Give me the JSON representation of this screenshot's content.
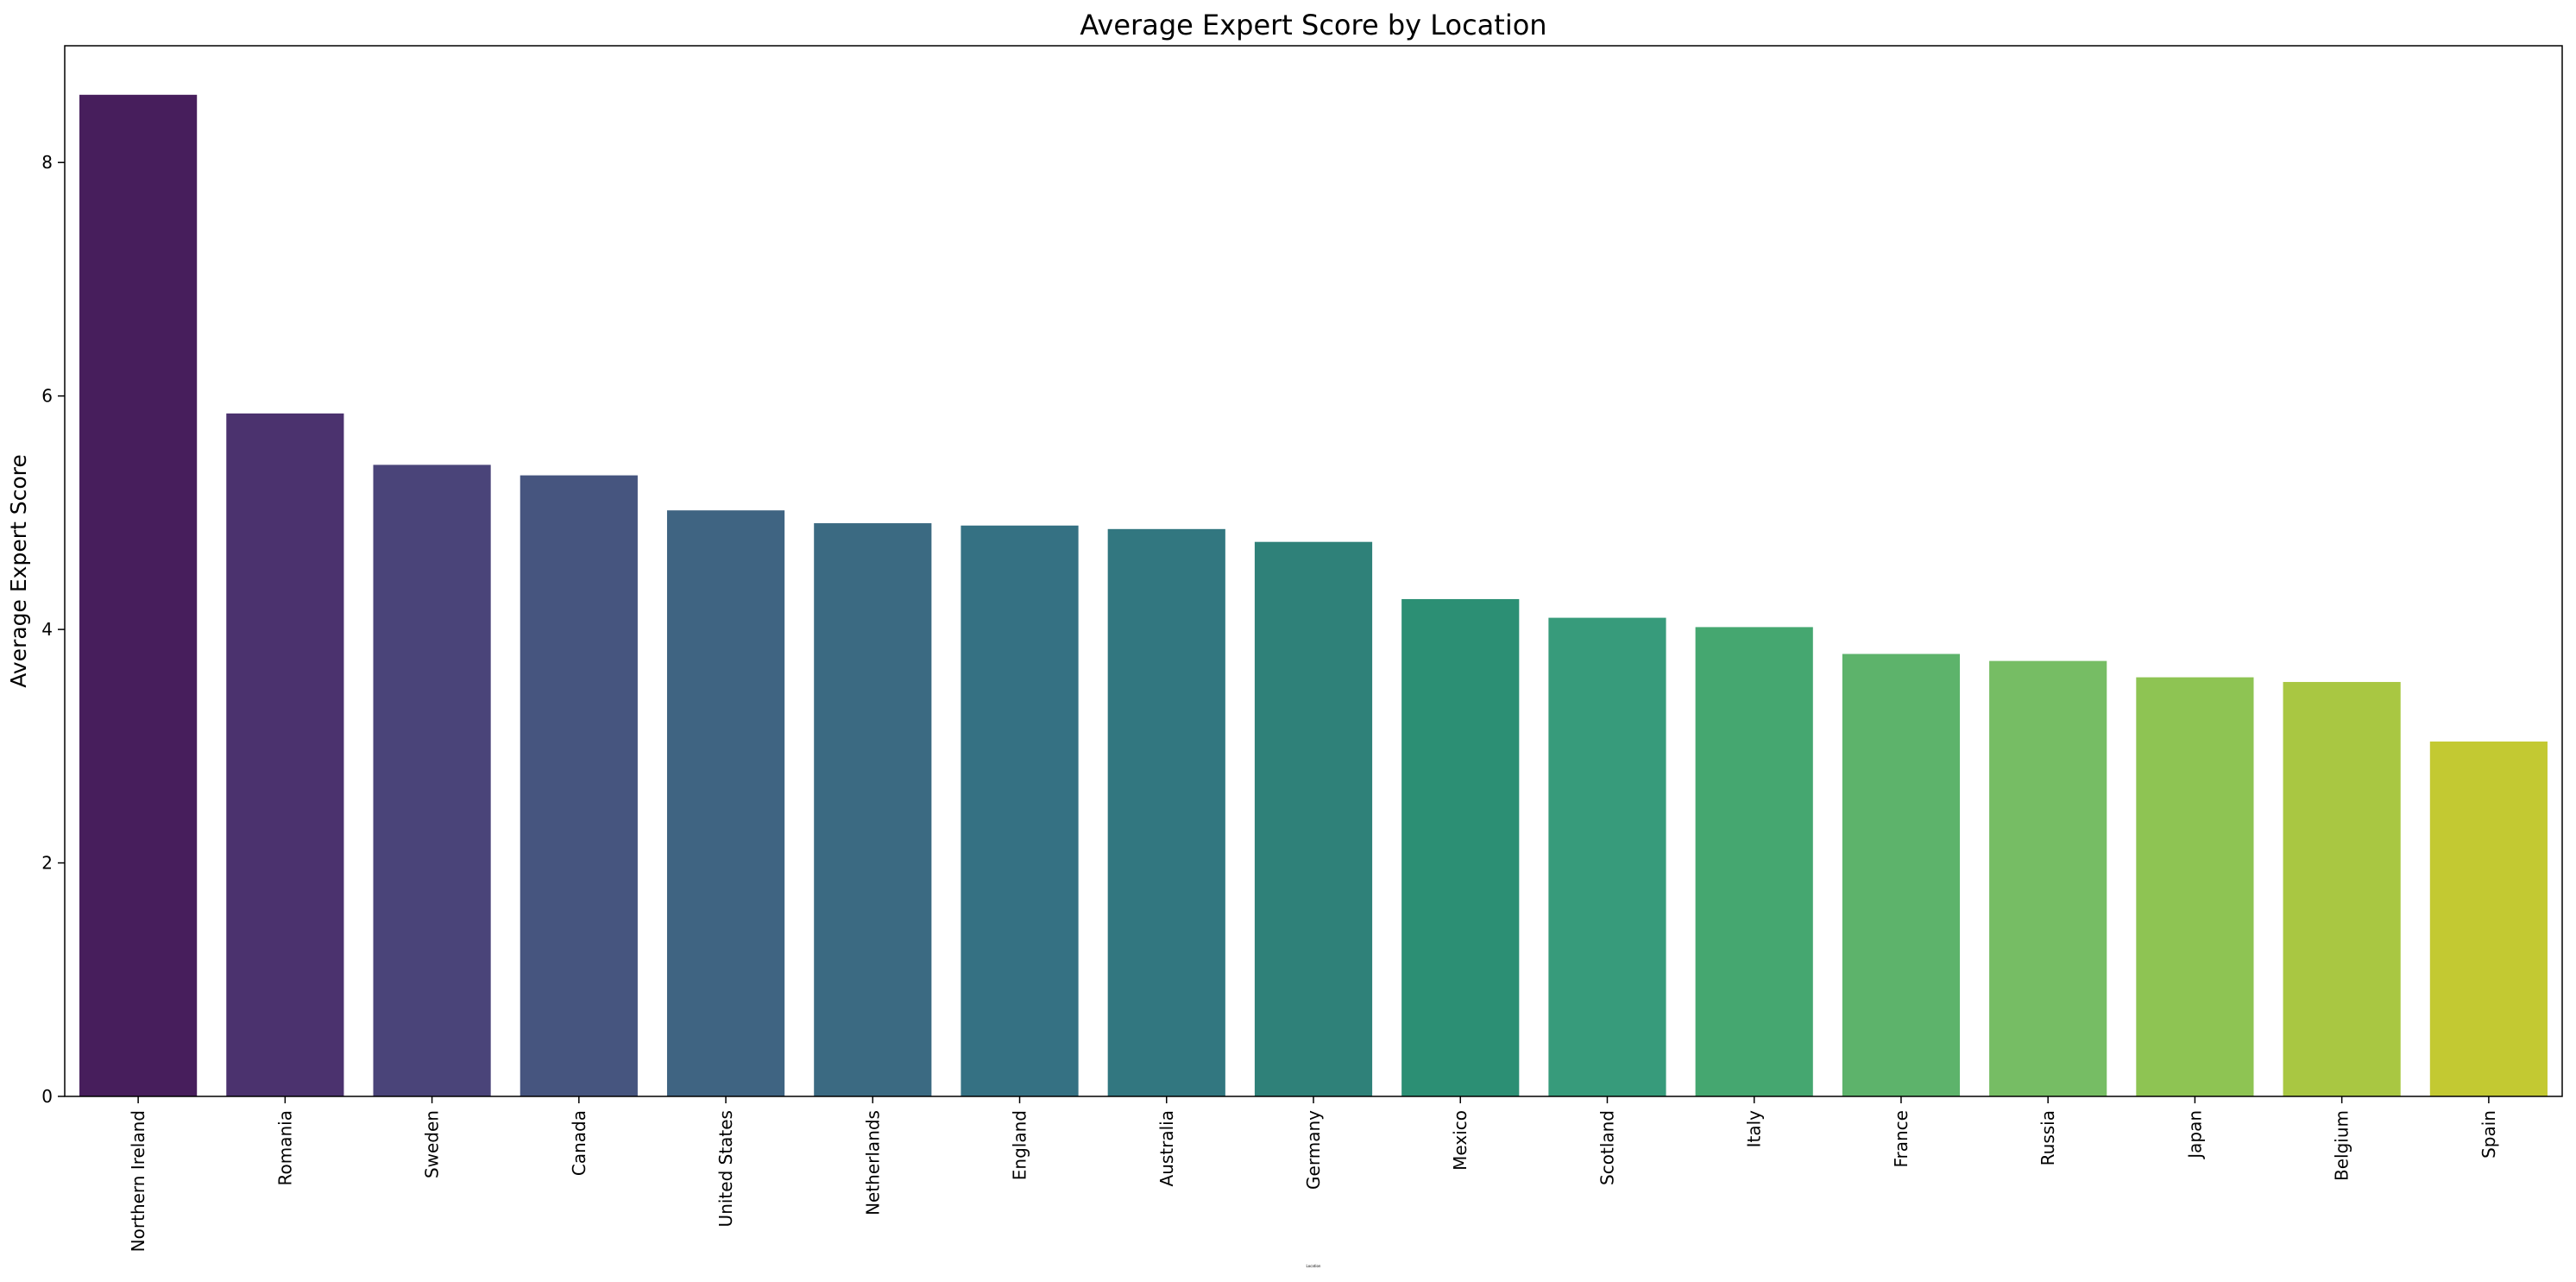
{
  "chart_data": {
    "type": "bar",
    "title": "Average Expert Score by Location",
    "xlabel": "Location",
    "ylabel": "Average Expert Score",
    "ylim": [
      0,
      9
    ],
    "yticks": [
      0,
      2,
      4,
      6,
      8
    ],
    "grid": false,
    "legend": "none",
    "categories": [
      "Northern Ireland",
      "Romania",
      "Sweden",
      "Canada",
      "United States",
      "Netherlands",
      "England",
      "Australia",
      "Germany",
      "Mexico",
      "Scotland",
      "Italy",
      "France",
      "Russia",
      "Japan",
      "Belgium",
      "Spain"
    ],
    "values": [
      8.58,
      5.85,
      5.41,
      5.32,
      5.02,
      4.91,
      4.89,
      4.86,
      4.75,
      4.26,
      4.1,
      4.02,
      3.79,
      3.73,
      3.59,
      3.55,
      3.04
    ],
    "colors": [
      "#471e5c",
      "#4b326e",
      "#4a4479",
      "#46557f",
      "#3f6482",
      "#3b6a82",
      "#357183",
      "#327780",
      "#2f8179",
      "#2c8f74",
      "#379b7b",
      "#45a770",
      "#5db36b",
      "#76bd64",
      "#8ec453",
      "#a9c742",
      "#c3c932"
    ]
  }
}
